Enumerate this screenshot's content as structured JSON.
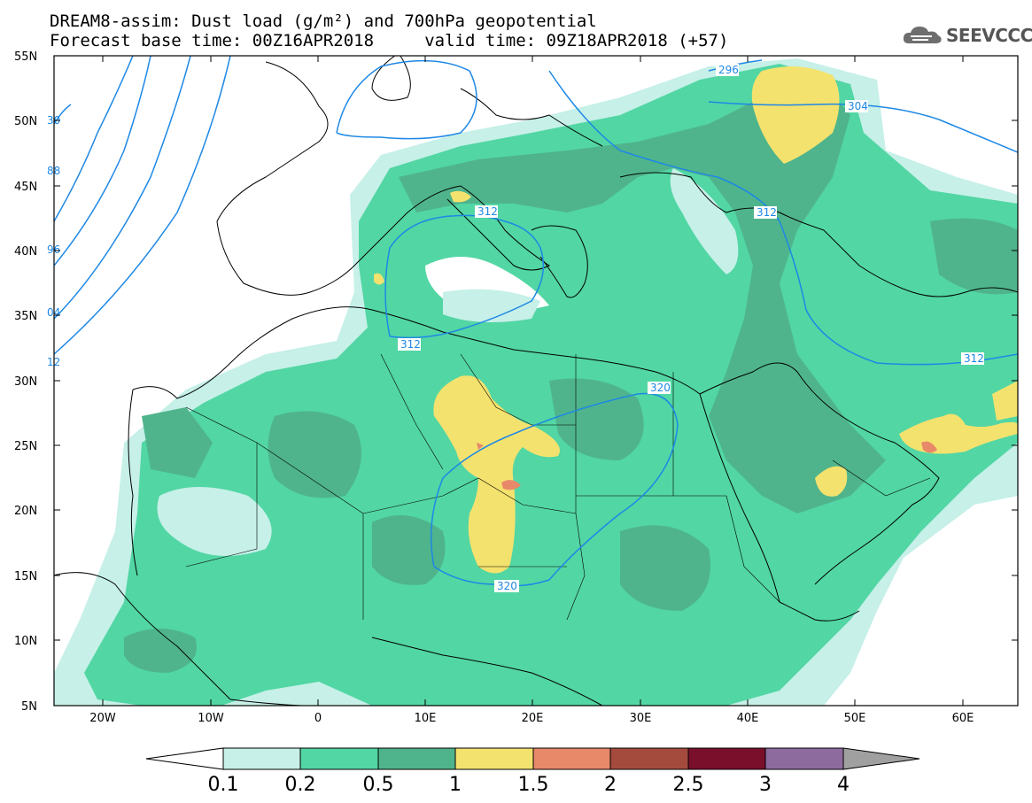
{
  "title": {
    "line1": "DREAM8-assim: Dust load (g/m²) and 700hPa geopotential",
    "line2": "Forecast base time: 00Z16APR2018     valid time: 09Z18APR2018 (+57)"
  },
  "logo": {
    "text": "SEEVCCC",
    "icon": "cloud-icon"
  },
  "map": {
    "lon_labels": [
      "20W",
      "10W",
      "0",
      "10E",
      "20E",
      "30E",
      "40E",
      "50E",
      "60E"
    ],
    "lat_labels": [
      "55N",
      "50N",
      "45N",
      "40N",
      "35N",
      "30N",
      "25N",
      "20N",
      "15N",
      "10N",
      "5N"
    ],
    "contour_labels": [
      "296",
      "304",
      "312",
      "312",
      "312",
      "312",
      "320",
      "320",
      "30",
      "88",
      "96",
      "04",
      "12"
    ]
  },
  "colorbar": {
    "labels": [
      "0.1",
      "0.2",
      "0.5",
      "1",
      "1.5",
      "2",
      "2.5",
      "3",
      "4"
    ],
    "colors": [
      "#c6f0e8",
      "#52d6a4",
      "#4fb48c",
      "#f4e26e",
      "#e8896a",
      "#a44b3e",
      "#7a0f2c",
      "#8d6b9f",
      "#a0a0a0"
    ]
  }
}
